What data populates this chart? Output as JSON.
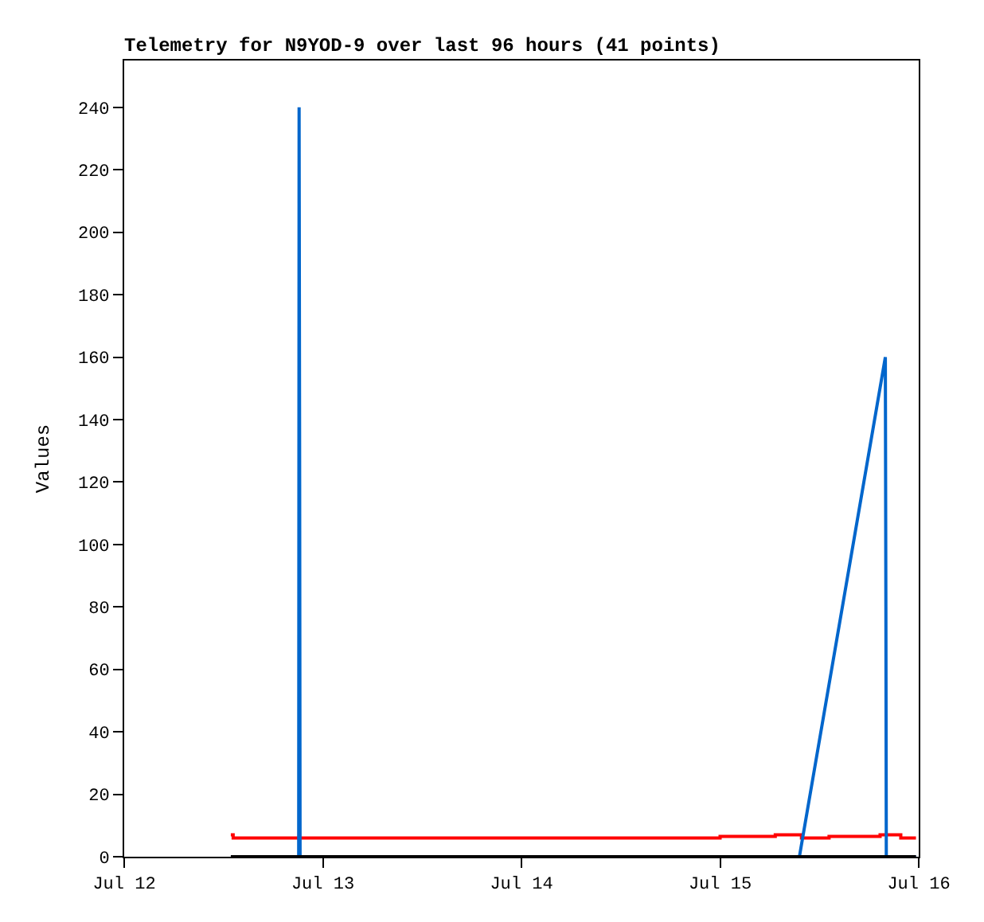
{
  "chart_data": {
    "type": "line",
    "title": "Telemetry for N9YOD-9 over last 96 hours (41 points)",
    "ylabel": "Values",
    "xlim": [
      "--07-12",
      "--07-16"
    ],
    "xticks": [
      {
        "value": "--07-12",
        "label": "Jul 12"
      },
      {
        "value": "--07-13",
        "label": "Jul 13"
      },
      {
        "value": "--07-14",
        "label": "Jul 14"
      },
      {
        "value": "--07-15",
        "label": "Jul 15"
      },
      {
        "value": "--07-16",
        "label": "Jul 16"
      }
    ],
    "ylim": [
      0,
      255
    ],
    "yticks": [
      0,
      20,
      40,
      60,
      80,
      100,
      120,
      140,
      160,
      180,
      200,
      220,
      240
    ],
    "marker": "none",
    "line_style": "solid",
    "series": [
      {
        "type": "step",
        "color": "#ff0000",
        "x": [
          "--07-12T12:53",
          "--07-12T13:10",
          "--07-15T00:00",
          "--07-15T06:40",
          "--07-15T09:50",
          "--07-15T13:10",
          "--07-15T19:20",
          "--07-15T21:50",
          "--07-15T23:40"
        ],
        "values": [
          7,
          6,
          6.5,
          7,
          6,
          6.5,
          7,
          6,
          6
        ]
      },
      {
        "color": "#0066cc",
        "x": [
          "--07-12T12:53",
          "--07-12T21:05",
          "--07-12T21:08",
          "--07-12T21:12",
          "--07-12T21:15",
          "--07-15T09:35",
          "--07-15T19:58",
          "--07-15T20:02",
          "--07-15T20:05",
          "--07-15T23:40"
        ],
        "values": [
          0,
          0,
          240,
          120,
          0,
          0,
          160,
          80,
          0,
          0
        ]
      },
      {
        "color": "#000000",
        "x": [
          "--07-12T12:53",
          "--07-15T23:40"
        ],
        "values": [
          0,
          0
        ]
      }
    ]
  }
}
